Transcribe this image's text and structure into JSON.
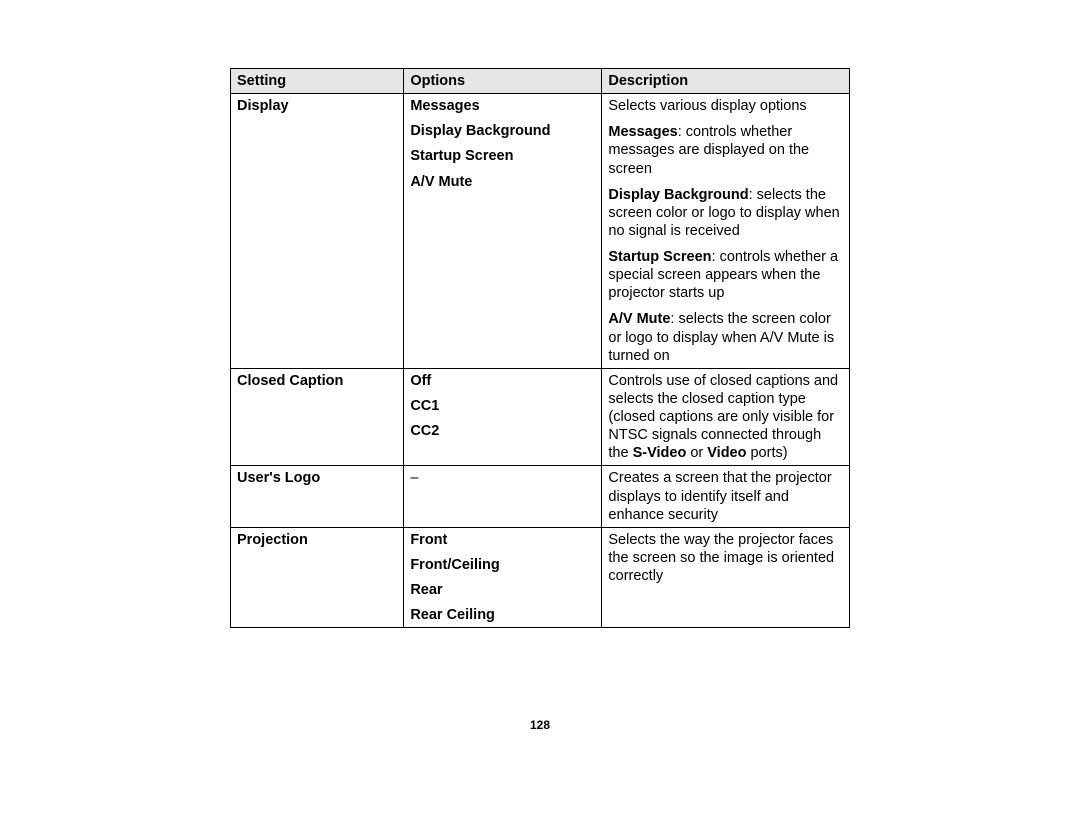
{
  "headers": {
    "c1": "Setting",
    "c2": "Options",
    "c3": "Description"
  },
  "rows": {
    "r1": {
      "setting": "Display",
      "options": [
        "Messages",
        "Display Background",
        "Startup Screen",
        "A/V Mute"
      ],
      "desc": {
        "intro": "Selects various display options",
        "p1_label": "Messages",
        "p1_rest": ": controls whether messages are displayed on the screen",
        "p2_label": "Display Background",
        "p2_rest": ": selects the screen color or logo to display when no signal is received",
        "p3_label": "Startup Screen",
        "p3_rest": ": controls whether a special screen appears when the projector starts up",
        "p4_label": "A/V Mute",
        "p4_rest": ": selects the screen color or logo to display when A/V Mute is turned on"
      }
    },
    "r2": {
      "setting": "Closed Caption",
      "options": [
        "Off",
        "CC1",
        "CC2"
      ],
      "desc": {
        "pre": "Controls use of closed captions and selects the closed caption type (closed captions are only visible for NTSC signals connected through the ",
        "b1": "S-Video",
        "mid": " or ",
        "b2": "Video",
        "post": " ports)"
      }
    },
    "r3": {
      "setting": "User's Logo",
      "options_literal": "–",
      "desc": "Creates a screen that the projector displays to identify itself and enhance security"
    },
    "r4": {
      "setting": "Projection",
      "options": [
        "Front",
        "Front/Ceiling",
        "Rear",
        "Rear Ceiling"
      ],
      "desc": "Selects the way the projector faces the screen so the image is oriented correctly"
    }
  },
  "page_number": "128"
}
